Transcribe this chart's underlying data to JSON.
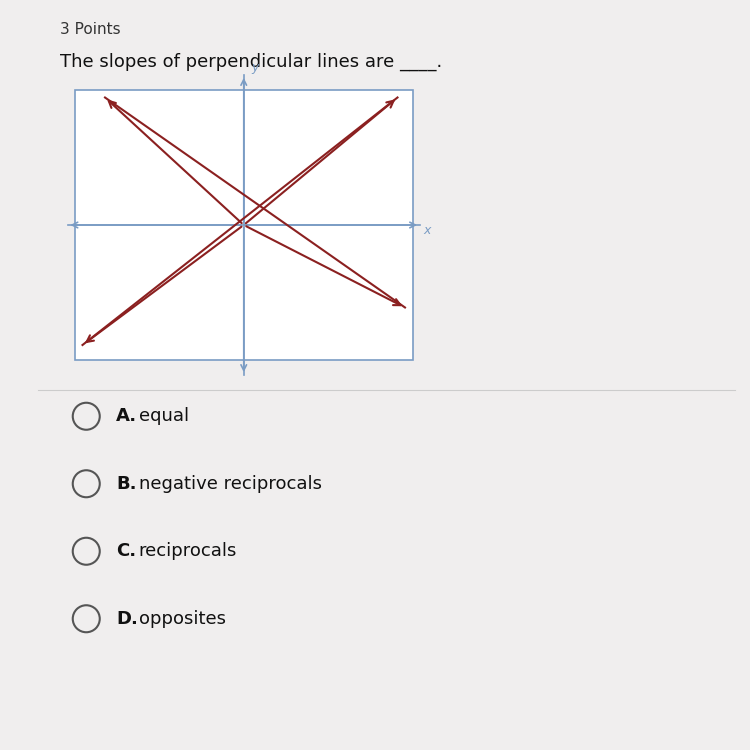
{
  "background_color": "#f0eeee",
  "title_points": "3 Points",
  "question": "The slopes of perpendicular lines are ____.",
  "choices": [
    {
      "letter": "A.",
      "text": "equal"
    },
    {
      "letter": "B.",
      "text": "negative reciprocals"
    },
    {
      "letter": "C.",
      "text": "reciprocals"
    },
    {
      "letter": "D.",
      "text": "opposites"
    }
  ],
  "graph": {
    "box_color": "#7a9cc4",
    "axis_color": "#7a9cc4",
    "line_color": "#b84040",
    "line_width": 1.5,
    "arrow_color": "#8b2020"
  }
}
